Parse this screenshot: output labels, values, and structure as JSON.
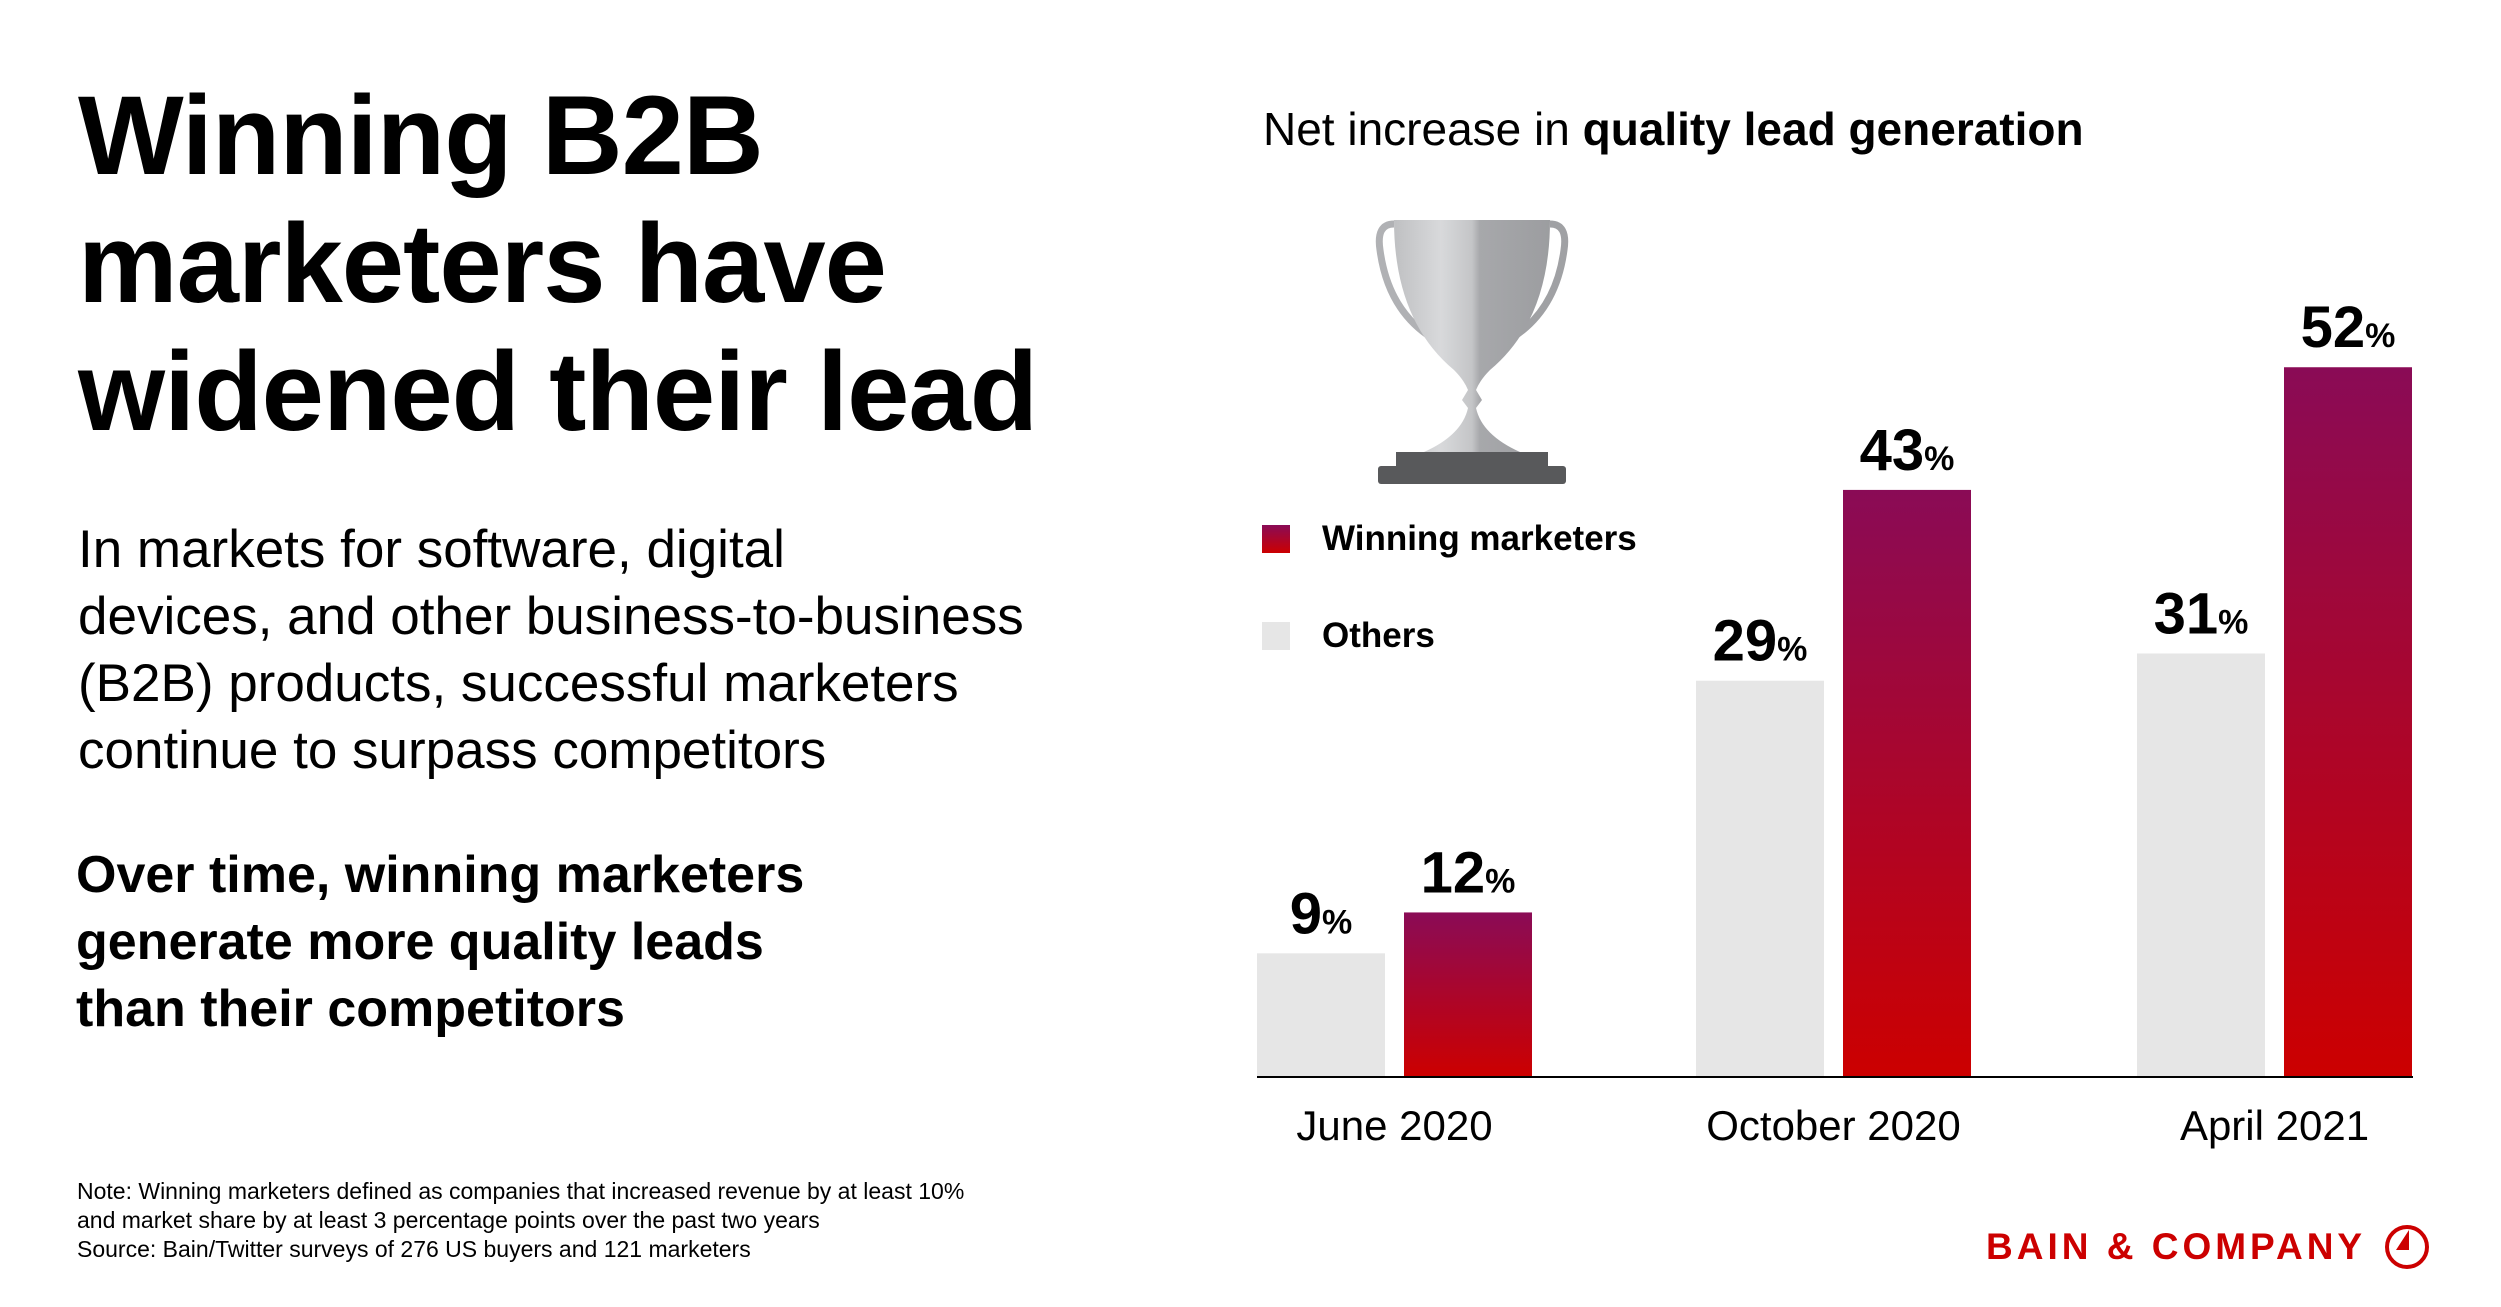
{
  "headline": [
    "Winning B2B",
    "marketers have",
    "widened their lead"
  ],
  "intro": [
    "In markets for software, digital",
    "devices, and other business-to-business",
    "(B2B) products, successful marketers",
    "continue to surpass competitors"
  ],
  "subhead": [
    "Over time, winning marketers",
    "generate more quality leads",
    "than their competitors"
  ],
  "note": [
    "Note: Winning marketers defined as companies that increased revenue by at least 10%",
    "and market share by at least 3 percentage points over the past two years",
    "Source: Bain/Twitter surveys of 276 US buyers and 121 marketers"
  ],
  "logo": {
    "text": "BAIN & COMPANY",
    "color": "#cc0000"
  },
  "icons": {
    "trophy": "trophy-icon",
    "logo_mark": "bain-compass-icon"
  },
  "chart_data": {
    "type": "bar",
    "title_regular": "Net increase in ",
    "title_bold": "quality lead generation",
    "categories": [
      "June 2020",
      "October 2020",
      "April 2021"
    ],
    "series": [
      {
        "name": "Others",
        "values": [
          9,
          29,
          31
        ],
        "color": "#e6e6e6"
      },
      {
        "name": "Winning marketers",
        "values": [
          12,
          43,
          52
        ],
        "color_top": "#8a0b56",
        "color_bottom": "#cc0000"
      }
    ],
    "value_suffix": "%",
    "ylim": [
      0,
      52
    ],
    "grid": false,
    "legend_placement": "top-left"
  }
}
